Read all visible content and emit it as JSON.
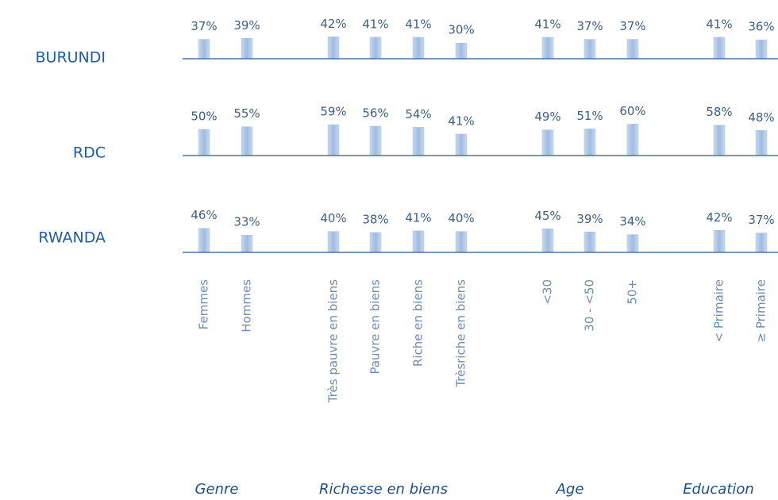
{
  "chart_data": {
    "type": "bar",
    "categories": [
      "Femmes",
      "Hommes",
      "Très pauvre en biens",
      "Pauvre en biens",
      "Riche en biens",
      "Trèsriche en biens",
      "<30",
      "30 - <50",
      "50+",
      "< Primaire",
      "≥ Primaire"
    ],
    "groups": [
      "Genre",
      "Richesse en biens",
      "Age",
      "Education"
    ],
    "series": [
      {
        "name": "BURUNDI",
        "color": "#a9c3e3",
        "values": [
          37,
          39,
          42,
          41,
          41,
          30,
          41,
          37,
          37,
          41,
          36
        ],
        "value_labels": [
          "37%",
          "39%",
          "42%",
          "41%",
          "41%",
          "30%",
          "41%",
          "37%",
          "37%",
          "41%",
          "36%"
        ]
      },
      {
        "name": "RDC",
        "color": "#a9c3e3",
        "values": [
          50,
          55,
          59,
          56,
          54,
          41,
          49,
          51,
          60,
          58,
          48
        ],
        "value_labels": [
          "50%",
          "55%",
          "59%",
          "56%",
          "54%",
          "41%",
          "49%",
          "51%",
          "60%",
          "58%",
          "48%"
        ]
      },
      {
        "name": "RWANDA",
        "color": "#a9c3e3",
        "values": [
          46,
          33,
          40,
          38,
          41,
          40,
          45,
          39,
          34,
          42,
          37
        ],
        "value_labels": [
          "46%",
          "33%",
          "40%",
          "38%",
          "41%",
          "40%",
          "45%",
          "39%",
          "34%",
          "42%",
          "37%"
        ]
      }
    ]
  }
}
